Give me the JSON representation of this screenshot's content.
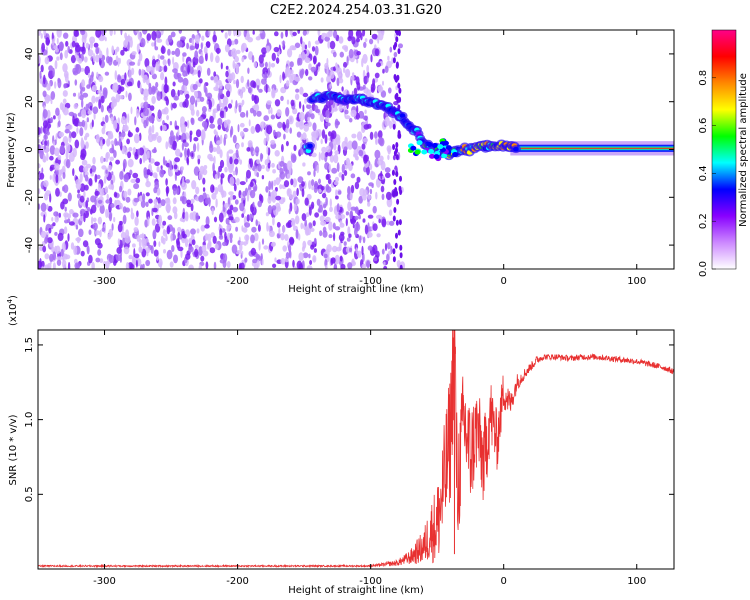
{
  "title": "C2E2.2024.254.03.31.G20",
  "chart_data": [
    {
      "type": "heatmap",
      "xlabel": "Height of straight line (km)",
      "ylabel": "Frequency (Hz)",
      "xlim": [
        -350,
        128
      ],
      "ylim": [
        -50,
        50
      ],
      "xticks": [
        -300,
        -200,
        -100,
        0,
        100
      ],
      "xtick_labels": [
        "-300",
        "-200",
        "-100",
        "0",
        "100"
      ],
      "yticks": [
        -40,
        -20,
        0,
        20,
        40
      ],
      "ytick_labels": [
        "-40",
        "-20",
        "0",
        "20",
        "40"
      ],
      "colorbar": {
        "label": "Normalized spectral amplitude",
        "range": [
          0,
          1
        ],
        "ticks": [
          0.0,
          0.2,
          0.4,
          0.6,
          0.8
        ],
        "tick_labels": [
          "0.0",
          "0.2",
          "0.4",
          "0.6",
          "0.8"
        ],
        "colormap": [
          "#ffffff",
          "#cc88ff",
          "#8800ff",
          "#0000ff",
          "#00ffff",
          "#00ff00",
          "#ffff00",
          "#ff8800",
          "#ff0000",
          "#ff0088"
        ]
      },
      "noise_region_x": [
        -350,
        -75
      ],
      "signal_trace": {
        "x": [
          -145,
          -130,
          -115,
          -100,
          -90,
          -80,
          -72,
          -65,
          -60,
          -55,
          -50,
          -45,
          -40,
          -35,
          -30,
          -25,
          -20,
          -15,
          -10,
          -5,
          0,
          5,
          10,
          20,
          40,
          60,
          80,
          100,
          128
        ],
        "y": [
          22,
          22,
          21,
          20,
          18,
          15,
          11,
          7,
          3,
          1,
          0,
          -1,
          -2,
          -1,
          0,
          0,
          1,
          1,
          2,
          2,
          1,
          1,
          0.5,
          0.5,
          0.5,
          0.5,
          0.5,
          0.5,
          0.5
        ]
      }
    },
    {
      "type": "line",
      "xlabel": "Height of straight line (km)",
      "ylabel": "SNR (10 * v/v)",
      "multiplier": "(x10",
      "multiplier_exp": "4",
      "multiplier_close": ")",
      "xlim": [
        -350,
        128
      ],
      "ylim": [
        0,
        1.6
      ],
      "xticks": [
        -300,
        -200,
        -100,
        0,
        100
      ],
      "xtick_labels": [
        "-300",
        "-200",
        "-100",
        "0",
        "100"
      ],
      "yticks": [
        0.5,
        1.0,
        1.5
      ],
      "ytick_labels": [
        "0.5",
        "1.0",
        "1.5"
      ],
      "series": [
        {
          "color": "#e83030",
          "x": [
            -350,
            -300,
            -250,
            -200,
            -150,
            -100,
            -80,
            -70,
            -60,
            -55,
            -50,
            -45,
            -40,
            -37,
            -35,
            -32,
            -30,
            -25,
            -20,
            -15,
            -10,
            -5,
            0,
            5,
            10,
            15,
            20,
            25,
            30,
            40,
            50,
            60,
            70,
            80,
            90,
            100,
            110,
            120,
            128
          ],
          "y": [
            0.02,
            0.02,
            0.02,
            0.02,
            0.02,
            0.02,
            0.04,
            0.08,
            0.15,
            0.25,
            0.3,
            0.55,
            0.9,
            1.58,
            0.5,
            0.8,
            1.0,
            0.75,
            0.95,
            0.7,
            1.05,
            0.85,
            1.2,
            1.1,
            1.25,
            1.3,
            1.35,
            1.4,
            1.42,
            1.42,
            1.41,
            1.42,
            1.42,
            1.41,
            1.4,
            1.39,
            1.37,
            1.35,
            1.32
          ],
          "noise": [
            0.005,
            0.005,
            0.005,
            0.005,
            0.005,
            0.005,
            0.02,
            0.05,
            0.12,
            0.2,
            0.28,
            0.4,
            0.45,
            0.5,
            0.45,
            0.4,
            0.38,
            0.35,
            0.3,
            0.3,
            0.25,
            0.2,
            0.15,
            0.08,
            0.06,
            0.04,
            0.03,
            0.03,
            0.02,
            0.02,
            0.02,
            0.02,
            0.02,
            0.02,
            0.02,
            0.02,
            0.02,
            0.02,
            0.02
          ]
        }
      ]
    }
  ]
}
